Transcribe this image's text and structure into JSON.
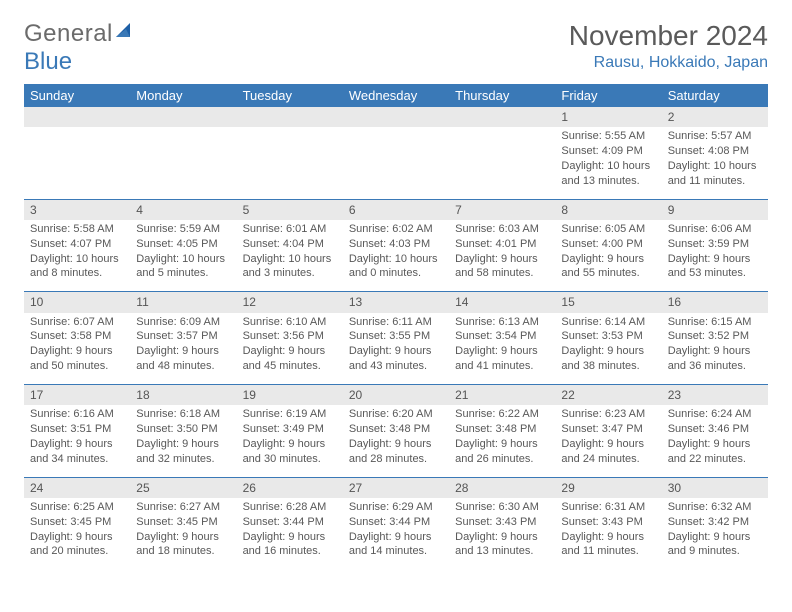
{
  "brand": {
    "part1": "General",
    "part2": "Blue"
  },
  "title": "November 2024",
  "location": "Rausu, Hokkaido, Japan",
  "colors": {
    "accent": "#3a79b7",
    "header_row_bg": "#e9e9e9",
    "text": "#585858",
    "bg": "#ffffff"
  },
  "day_headers": [
    "Sunday",
    "Monday",
    "Tuesday",
    "Wednesday",
    "Thursday",
    "Friday",
    "Saturday"
  ],
  "weeks": [
    [
      null,
      null,
      null,
      null,
      null,
      {
        "n": "1",
        "sr": "Sunrise: 5:55 AM",
        "ss": "Sunset: 4:09 PM",
        "d1": "Daylight: 10 hours",
        "d2": "and 13 minutes."
      },
      {
        "n": "2",
        "sr": "Sunrise: 5:57 AM",
        "ss": "Sunset: 4:08 PM",
        "d1": "Daylight: 10 hours",
        "d2": "and 11 minutes."
      }
    ],
    [
      {
        "n": "3",
        "sr": "Sunrise: 5:58 AM",
        "ss": "Sunset: 4:07 PM",
        "d1": "Daylight: 10 hours",
        "d2": "and 8 minutes."
      },
      {
        "n": "4",
        "sr": "Sunrise: 5:59 AM",
        "ss": "Sunset: 4:05 PM",
        "d1": "Daylight: 10 hours",
        "d2": "and 5 minutes."
      },
      {
        "n": "5",
        "sr": "Sunrise: 6:01 AM",
        "ss": "Sunset: 4:04 PM",
        "d1": "Daylight: 10 hours",
        "d2": "and 3 minutes."
      },
      {
        "n": "6",
        "sr": "Sunrise: 6:02 AM",
        "ss": "Sunset: 4:03 PM",
        "d1": "Daylight: 10 hours",
        "d2": "and 0 minutes."
      },
      {
        "n": "7",
        "sr": "Sunrise: 6:03 AM",
        "ss": "Sunset: 4:01 PM",
        "d1": "Daylight: 9 hours",
        "d2": "and 58 minutes."
      },
      {
        "n": "8",
        "sr": "Sunrise: 6:05 AM",
        "ss": "Sunset: 4:00 PM",
        "d1": "Daylight: 9 hours",
        "d2": "and 55 minutes."
      },
      {
        "n": "9",
        "sr": "Sunrise: 6:06 AM",
        "ss": "Sunset: 3:59 PM",
        "d1": "Daylight: 9 hours",
        "d2": "and 53 minutes."
      }
    ],
    [
      {
        "n": "10",
        "sr": "Sunrise: 6:07 AM",
        "ss": "Sunset: 3:58 PM",
        "d1": "Daylight: 9 hours",
        "d2": "and 50 minutes."
      },
      {
        "n": "11",
        "sr": "Sunrise: 6:09 AM",
        "ss": "Sunset: 3:57 PM",
        "d1": "Daylight: 9 hours",
        "d2": "and 48 minutes."
      },
      {
        "n": "12",
        "sr": "Sunrise: 6:10 AM",
        "ss": "Sunset: 3:56 PM",
        "d1": "Daylight: 9 hours",
        "d2": "and 45 minutes."
      },
      {
        "n": "13",
        "sr": "Sunrise: 6:11 AM",
        "ss": "Sunset: 3:55 PM",
        "d1": "Daylight: 9 hours",
        "d2": "and 43 minutes."
      },
      {
        "n": "14",
        "sr": "Sunrise: 6:13 AM",
        "ss": "Sunset: 3:54 PM",
        "d1": "Daylight: 9 hours",
        "d2": "and 41 minutes."
      },
      {
        "n": "15",
        "sr": "Sunrise: 6:14 AM",
        "ss": "Sunset: 3:53 PM",
        "d1": "Daylight: 9 hours",
        "d2": "and 38 minutes."
      },
      {
        "n": "16",
        "sr": "Sunrise: 6:15 AM",
        "ss": "Sunset: 3:52 PM",
        "d1": "Daylight: 9 hours",
        "d2": "and 36 minutes."
      }
    ],
    [
      {
        "n": "17",
        "sr": "Sunrise: 6:16 AM",
        "ss": "Sunset: 3:51 PM",
        "d1": "Daylight: 9 hours",
        "d2": "and 34 minutes."
      },
      {
        "n": "18",
        "sr": "Sunrise: 6:18 AM",
        "ss": "Sunset: 3:50 PM",
        "d1": "Daylight: 9 hours",
        "d2": "and 32 minutes."
      },
      {
        "n": "19",
        "sr": "Sunrise: 6:19 AM",
        "ss": "Sunset: 3:49 PM",
        "d1": "Daylight: 9 hours",
        "d2": "and 30 minutes."
      },
      {
        "n": "20",
        "sr": "Sunrise: 6:20 AM",
        "ss": "Sunset: 3:48 PM",
        "d1": "Daylight: 9 hours",
        "d2": "and 28 minutes."
      },
      {
        "n": "21",
        "sr": "Sunrise: 6:22 AM",
        "ss": "Sunset: 3:48 PM",
        "d1": "Daylight: 9 hours",
        "d2": "and 26 minutes."
      },
      {
        "n": "22",
        "sr": "Sunrise: 6:23 AM",
        "ss": "Sunset: 3:47 PM",
        "d1": "Daylight: 9 hours",
        "d2": "and 24 minutes."
      },
      {
        "n": "23",
        "sr": "Sunrise: 6:24 AM",
        "ss": "Sunset: 3:46 PM",
        "d1": "Daylight: 9 hours",
        "d2": "and 22 minutes."
      }
    ],
    [
      {
        "n": "24",
        "sr": "Sunrise: 6:25 AM",
        "ss": "Sunset: 3:45 PM",
        "d1": "Daylight: 9 hours",
        "d2": "and 20 minutes."
      },
      {
        "n": "25",
        "sr": "Sunrise: 6:27 AM",
        "ss": "Sunset: 3:45 PM",
        "d1": "Daylight: 9 hours",
        "d2": "and 18 minutes."
      },
      {
        "n": "26",
        "sr": "Sunrise: 6:28 AM",
        "ss": "Sunset: 3:44 PM",
        "d1": "Daylight: 9 hours",
        "d2": "and 16 minutes."
      },
      {
        "n": "27",
        "sr": "Sunrise: 6:29 AM",
        "ss": "Sunset: 3:44 PM",
        "d1": "Daylight: 9 hours",
        "d2": "and 14 minutes."
      },
      {
        "n": "28",
        "sr": "Sunrise: 6:30 AM",
        "ss": "Sunset: 3:43 PM",
        "d1": "Daylight: 9 hours",
        "d2": "and 13 minutes."
      },
      {
        "n": "29",
        "sr": "Sunrise: 6:31 AM",
        "ss": "Sunset: 3:43 PM",
        "d1": "Daylight: 9 hours",
        "d2": "and 11 minutes."
      },
      {
        "n": "30",
        "sr": "Sunrise: 6:32 AM",
        "ss": "Sunset: 3:42 PM",
        "d1": "Daylight: 9 hours",
        "d2": "and 9 minutes."
      }
    ]
  ]
}
